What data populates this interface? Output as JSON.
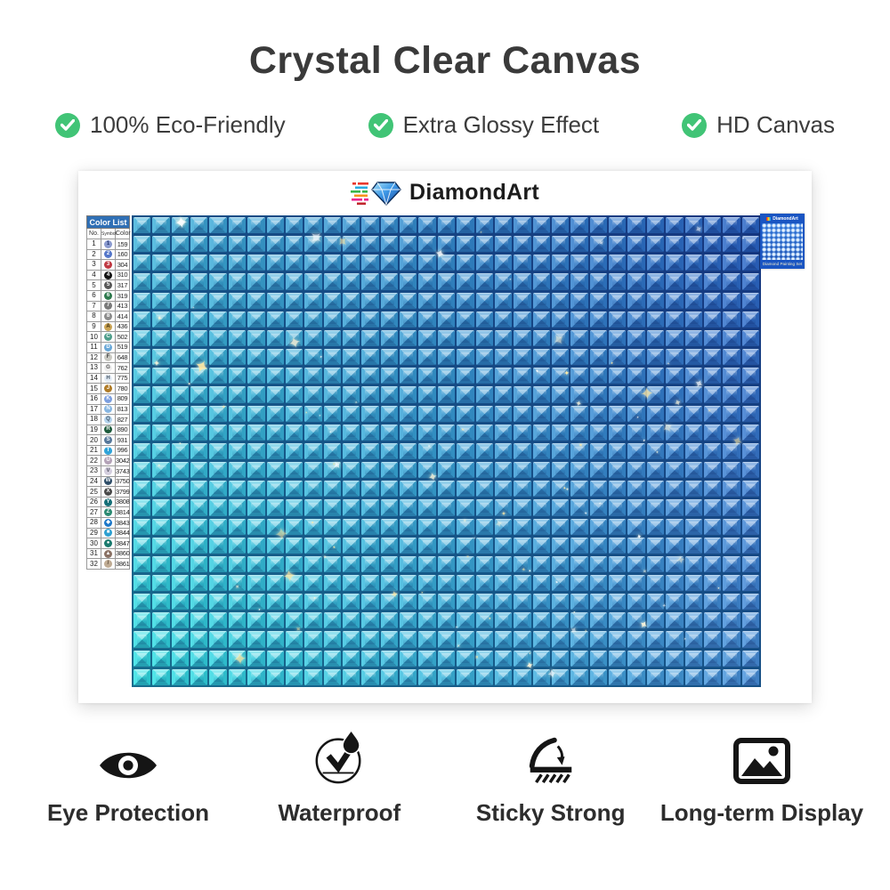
{
  "title": "Crystal Clear Canvas",
  "features": [
    {
      "label": "100% Eco-Friendly"
    },
    {
      "label": "Extra Glossy Effect"
    },
    {
      "label": "HD Canvas"
    }
  ],
  "canvas": {
    "brand": "DiamondArt",
    "color_list": {
      "title": "Color List",
      "columns": [
        "No.",
        "Symbol",
        "Color"
      ],
      "rows": [
        {
          "no": "1",
          "symbol": "1",
          "code": "159",
          "bg": "#8b9bd0",
          "fg": "#22356e"
        },
        {
          "no": "2",
          "symbol": "2",
          "code": "160",
          "bg": "#5577c9",
          "fg": "#ffffff"
        },
        {
          "no": "3",
          "symbol": "3",
          "code": "304",
          "bg": "#c03a44",
          "fg": "#ffffff"
        },
        {
          "no": "4",
          "symbol": "4",
          "code": "310",
          "bg": "#141414",
          "fg": "#ffffff"
        },
        {
          "no": "5",
          "symbol": "5",
          "code": "317",
          "bg": "#5a5a5a",
          "fg": "#ffffff"
        },
        {
          "no": "6",
          "symbol": "6",
          "code": "319",
          "bg": "#2f7a4e",
          "fg": "#ffffff"
        },
        {
          "no": "7",
          "symbol": "7",
          "code": "413",
          "bg": "#7b7b7b",
          "fg": "#ffffff"
        },
        {
          "no": "8",
          "symbol": "8",
          "code": "414",
          "bg": "#8d8d8d",
          "fg": "#ffffff"
        },
        {
          "no": "9",
          "symbol": "A",
          "code": "436",
          "bg": "#c9a354",
          "fg": "#3c2c0e"
        },
        {
          "no": "10",
          "symbol": "C",
          "code": "502",
          "bg": "#4f9e8b",
          "fg": "#ffffff"
        },
        {
          "no": "11",
          "symbol": "D",
          "code": "519",
          "bg": "#69a8d8",
          "fg": "#ffffff"
        },
        {
          "no": "12",
          "symbol": "F",
          "code": "648",
          "bg": "#c9c9c2",
          "fg": "#444444"
        },
        {
          "no": "13",
          "symbol": "G",
          "code": "762",
          "bg": "#ededed",
          "fg": "#555555"
        },
        {
          "no": "14",
          "symbol": "H",
          "code": "775",
          "bg": "#e4edf7",
          "fg": "#445566"
        },
        {
          "no": "15",
          "symbol": "J",
          "code": "780",
          "bg": "#b07c28",
          "fg": "#ffffff"
        },
        {
          "no": "16",
          "symbol": "K",
          "code": "809",
          "bg": "#7b9fe0",
          "fg": "#ffffff"
        },
        {
          "no": "17",
          "symbol": "N",
          "code": "813",
          "bg": "#86b6e2",
          "fg": "#ffffff"
        },
        {
          "no": "18",
          "symbol": "Q",
          "code": "827",
          "bg": "#b3d3ec",
          "fg": "#445566"
        },
        {
          "no": "19",
          "symbol": "R",
          "code": "890",
          "bg": "#1d5b3c",
          "fg": "#ffffff"
        },
        {
          "no": "20",
          "symbol": "S",
          "code": "931",
          "bg": "#56789b",
          "fg": "#ffffff"
        },
        {
          "no": "21",
          "symbol": "T",
          "code": "996",
          "bg": "#2fa3d8",
          "fg": "#ffffff"
        },
        {
          "no": "22",
          "symbol": "U",
          "code": "3042",
          "bg": "#b4a3b8",
          "fg": "#ffffff"
        },
        {
          "no": "23",
          "symbol": "V",
          "code": "3743",
          "bg": "#d3cede",
          "fg": "#555566"
        },
        {
          "no": "24",
          "symbol": "W",
          "code": "3750",
          "bg": "#2e4d68",
          "fg": "#ffffff"
        },
        {
          "no": "25",
          "symbol": "X",
          "code": "3799",
          "bg": "#4a4a4a",
          "fg": "#ffffff"
        },
        {
          "no": "26",
          "symbol": "Y",
          "code": "3808",
          "bg": "#156f77",
          "fg": "#ffffff"
        },
        {
          "no": "27",
          "symbol": "Z",
          "code": "3814",
          "bg": "#2c8a72",
          "fg": "#ffffff"
        },
        {
          "no": "28",
          "symbol": "◆",
          "code": "3843",
          "bg": "#1e78c8",
          "fg": "#ffffff"
        },
        {
          "no": "29",
          "symbol": "■",
          "code": "3844",
          "bg": "#2d9fd0",
          "fg": "#ffffff"
        },
        {
          "no": "30",
          "symbol": "●",
          "code": "3847",
          "bg": "#1a7a6e",
          "fg": "#ffffff"
        },
        {
          "no": "31",
          "symbol": "▲",
          "code": "3860",
          "bg": "#8a7265",
          "fg": "#ffffff"
        },
        {
          "no": "32",
          "symbol": "/",
          "code": "3861",
          "bg": "#c0ac94",
          "fg": "#554433"
        }
      ]
    },
    "grid": {
      "cols": 33,
      "rows": 25,
      "corner_colors": {
        "tl": "#41b2da",
        "tr": "#2b66c6",
        "bl": "#32e2e4",
        "br": "#4a94dc"
      },
      "grout": "#0a2a70",
      "sparkles": {
        "count": 85,
        "seed": 9,
        "glyph": "✦",
        "colors": [
          "#ffffff",
          "#fff8dc",
          "#ffeaa6"
        ]
      }
    },
    "thumbnail": {
      "brand": "DiamondArt",
      "caption": "Diamond Painting Set"
    }
  },
  "bottom_features": [
    {
      "icon": "eye-icon",
      "label": "Eye Protection"
    },
    {
      "icon": "waterproof-icon",
      "label": "Waterproof"
    },
    {
      "icon": "sticky-icon",
      "label": "Sticky Strong"
    },
    {
      "icon": "display-icon",
      "label": "Long-term Display"
    }
  ],
  "colors": {
    "check_green": "#41c476",
    "title_text": "#3a3a3a",
    "card_bg": "#ffffff"
  }
}
